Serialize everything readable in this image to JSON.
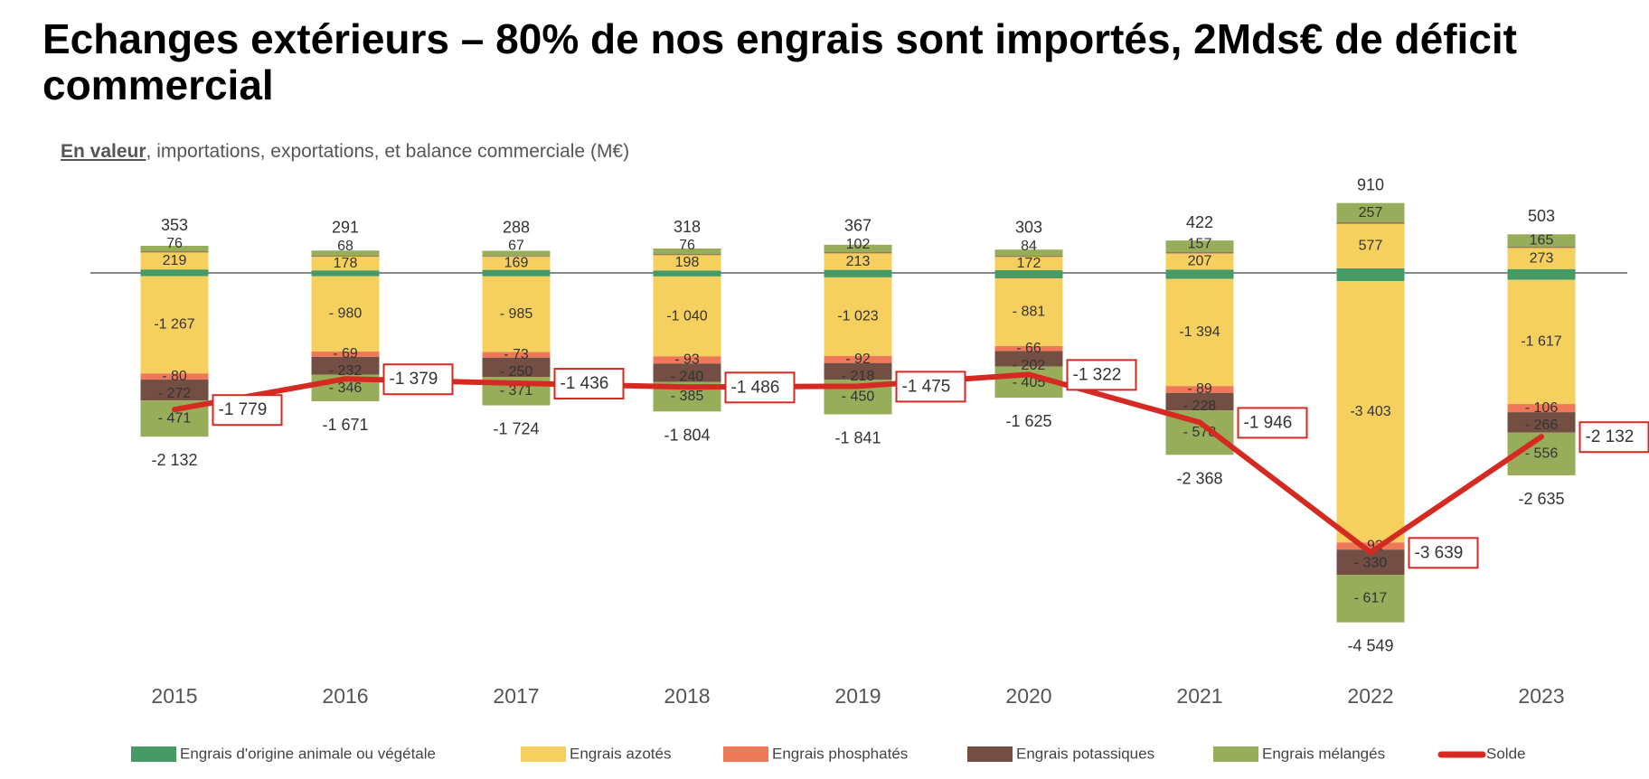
{
  "title": "Echanges extérieurs – 80% de nos engrais sont importés, 2Mds€ de déficit commercial",
  "subtitle": {
    "emphasis": "En valeur",
    "rest": ", importations, exportations, et balance commerciale (M€)"
  },
  "chart_data": {
    "type": "bar",
    "stacked": true,
    "categories": [
      "2015",
      "2016",
      "2017",
      "2018",
      "2019",
      "2020",
      "2021",
      "2022",
      "2023"
    ],
    "series": [
      {
        "name": "Engrais d'origine animale ou végétale",
        "color": "#459a65",
        "labeled": false,
        "positive": [
          45,
          33,
          40,
          32,
          40,
          35,
          44,
          60,
          50
        ],
        "negative": [
          -42,
          -44,
          -45,
          -46,
          -58,
          -71,
          -79,
          -107,
          -90
        ]
      },
      {
        "name": "Engrais azotés",
        "color": "#f5d05e",
        "labeled": true,
        "positive": [
          219,
          178,
          169,
          198,
          213,
          172,
          207,
          577,
          273
        ],
        "negative": [
          -1267,
          -980,
          -985,
          -1040,
          -1023,
          -881,
          -1394,
          -3403,
          -1617
        ]
      },
      {
        "name": "Engrais phosphatés",
        "color": "#ef7858",
        "labeled": true,
        "positive": [
          5,
          4,
          5,
          4,
          4,
          4,
          5,
          6,
          5
        ],
        "negative": [
          -80,
          -69,
          -73,
          -93,
          -92,
          -66,
          -89,
          -92,
          -106
        ],
        "label_positive": false
      },
      {
        "name": "Engrais potassiques",
        "color": "#734f43",
        "labeled": true,
        "positive": [
          8,
          8,
          7,
          8,
          8,
          8,
          9,
          10,
          10
        ],
        "negative": [
          -272,
          -232,
          -250,
          -240,
          -218,
          -202,
          -228,
          -330,
          -266
        ],
        "label_positive": false
      },
      {
        "name": "Engrais mélangés",
        "color": "#98ad5a",
        "labeled": true,
        "positive": [
          76,
          68,
          67,
          76,
          102,
          84,
          157,
          257,
          165
        ],
        "negative": [
          -471,
          -346,
          -371,
          -385,
          -450,
          -405,
          -578,
          -617,
          -556
        ]
      }
    ],
    "totals_exports": [
      353,
      291,
      288,
      318,
      367,
      303,
      422,
      910,
      503
    ],
    "totals_imports": [
      -2132,
      -1671,
      -1724,
      -1804,
      -1841,
      -1625,
      -2368,
      -4549,
      -2635
    ],
    "line": {
      "name": "Solde",
      "color": "#d42a22",
      "values": [
        -1779,
        -1379,
        -1436,
        -1486,
        -1475,
        -1322,
        -1946,
        -3639,
        -2132
      ]
    },
    "legend_position": "bottom",
    "grid": false
  }
}
